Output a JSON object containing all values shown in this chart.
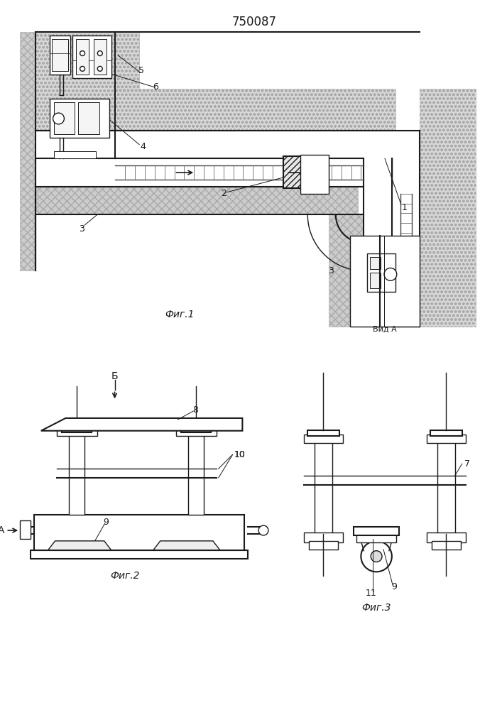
{
  "title": "750087",
  "bg_color": "#ffffff",
  "line_color": "#1a1a1a",
  "fig1_label": "Фиг.1",
  "fig2_label": "Фиг.2",
  "fig3_label": "Фиг.3",
  "vid_a_label": "Вид A",
  "lw": 1.0,
  "lw2": 1.5
}
